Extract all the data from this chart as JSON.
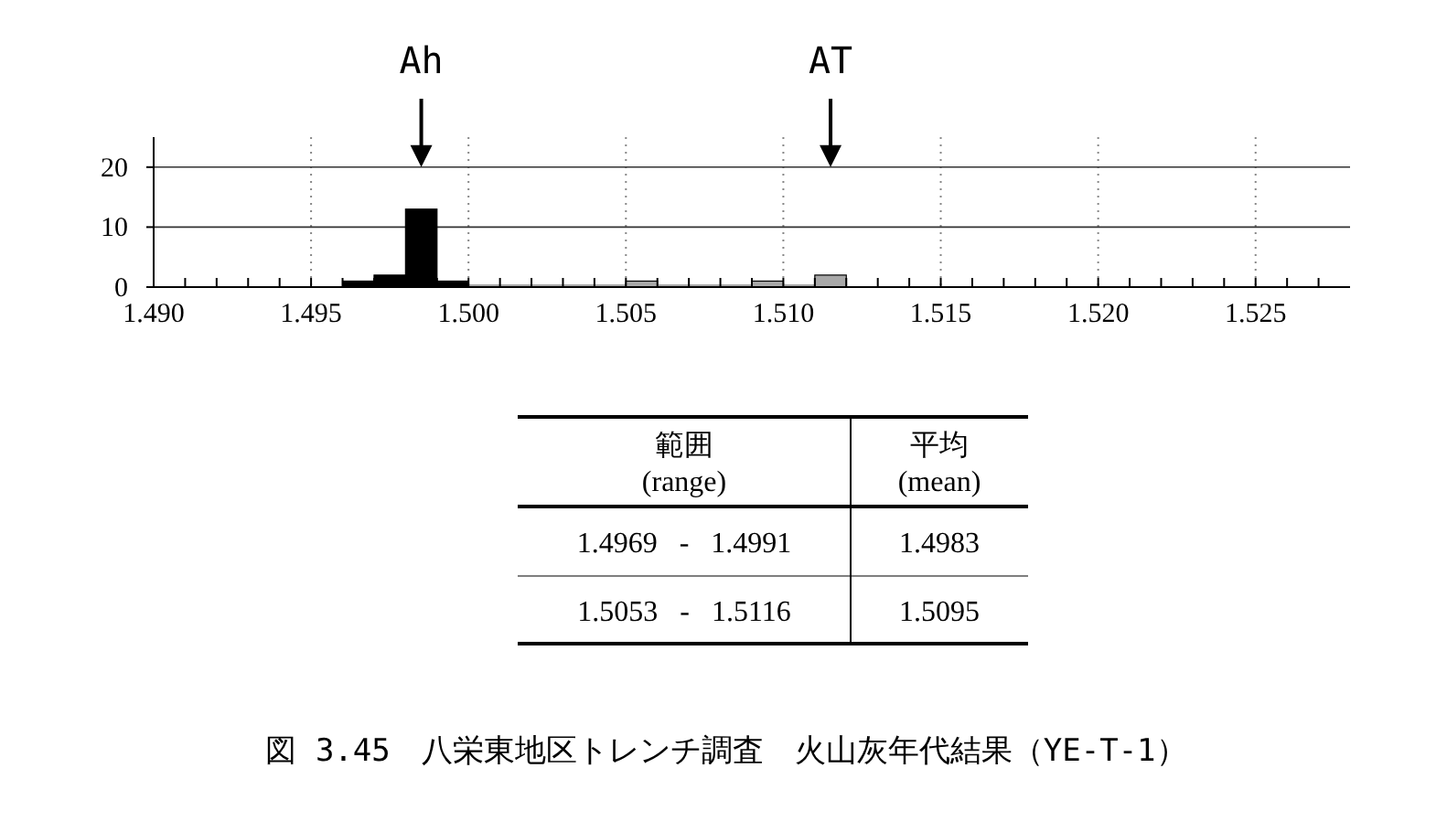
{
  "chart_data": {
    "type": "histogram",
    "title": "図 3.45　八栄東地区トレンチ調査　火山灰年代結果（YE-T-1）",
    "bins": [
      1.496,
      1.497,
      1.498,
      1.499,
      1.5,
      1.501,
      1.502,
      1.503,
      1.504,
      1.505,
      1.506,
      1.507,
      1.508,
      1.509,
      1.51,
      1.511,
      1.512
    ],
    "series": [
      {
        "color": "#000000",
        "values": [
          1,
          2,
          13,
          1,
          null,
          null,
          null,
          null,
          null,
          null,
          null,
          null,
          null,
          null,
          null,
          null
        ]
      },
      {
        "color": "#a8a8a8",
        "values": [
          null,
          null,
          null,
          null,
          0,
          0,
          0,
          0,
          0,
          1,
          0,
          0,
          0,
          1,
          0,
          2
        ]
      }
    ],
    "xlim": [
      1.49,
      1.528
    ],
    "xticks": [
      {
        "value": 1.49,
        "label": "1.490"
      },
      {
        "value": 1.491,
        "label": null
      },
      {
        "value": 1.492,
        "label": null
      },
      {
        "value": 1.493,
        "label": null
      },
      {
        "value": 1.494,
        "label": null
      },
      {
        "value": 1.495,
        "label": "1.495"
      },
      {
        "value": 1.496,
        "label": null
      },
      {
        "value": 1.497,
        "label": null
      },
      {
        "value": 1.498,
        "label": null
      },
      {
        "value": 1.499,
        "label": null
      },
      {
        "value": 1.5,
        "label": "1.500"
      },
      {
        "value": 1.501,
        "label": null
      },
      {
        "value": 1.502,
        "label": null
      },
      {
        "value": 1.503,
        "label": null
      },
      {
        "value": 1.504,
        "label": null
      },
      {
        "value": 1.505,
        "label": "1.505"
      },
      {
        "value": 1.506,
        "label": null
      },
      {
        "value": 1.507,
        "label": null
      },
      {
        "value": 1.508,
        "label": null
      },
      {
        "value": 1.509,
        "label": null
      },
      {
        "value": 1.51,
        "label": "1.510"
      },
      {
        "value": 1.511,
        "label": null
      },
      {
        "value": 1.512,
        "label": null
      },
      {
        "value": 1.513,
        "label": null
      },
      {
        "value": 1.514,
        "label": null
      },
      {
        "value": 1.515,
        "label": "1.515"
      },
      {
        "value": 1.516,
        "label": null
      },
      {
        "value": 1.517,
        "label": null
      },
      {
        "value": 1.518,
        "label": null
      },
      {
        "value": 1.519,
        "label": null
      },
      {
        "value": 1.52,
        "label": "1.520"
      },
      {
        "value": 1.521,
        "label": null
      },
      {
        "value": 1.522,
        "label": null
      },
      {
        "value": 1.523,
        "label": null
      },
      {
        "value": 1.524,
        "label": null
      },
      {
        "value": 1.525,
        "label": "1.525"
      },
      {
        "value": 1.526,
        "label": null
      },
      {
        "value": 1.527,
        "label": null
      }
    ],
    "ylim": [
      0,
      25
    ],
    "yticks": [
      0,
      10,
      20
    ],
    "grid": true,
    "annotations": [
      "Ah",
      "AT",
      "範囲\n(range)",
      "平均\n(mean)",
      "1.4969   -   1.4991",
      "1.4983",
      "1.5053   -   1.5116",
      "1.5095"
    ]
  }
}
